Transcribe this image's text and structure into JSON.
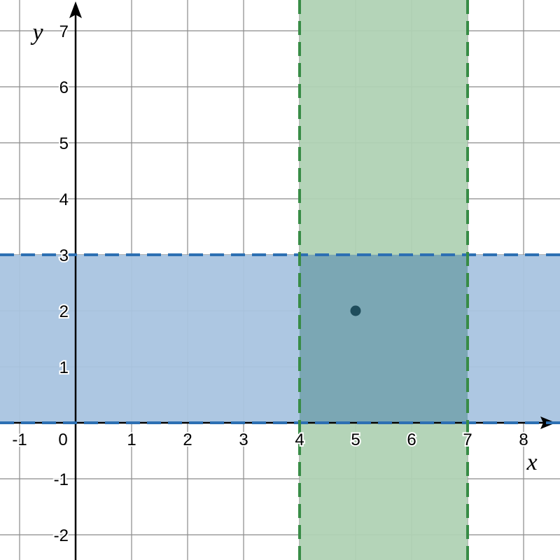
{
  "chart_data": {
    "type": "scatter",
    "xlabel": "x",
    "ylabel": "y",
    "xlim": [
      -1.35,
      8.65
    ],
    "ylim": [
      -2.45,
      7.55
    ],
    "grid": true,
    "x_ticks": [
      -1,
      0,
      1,
      2,
      3,
      4,
      5,
      6,
      7,
      8
    ],
    "y_ticks": [
      -2,
      -1,
      1,
      2,
      3,
      4,
      5,
      6,
      7
    ],
    "regions": [
      {
        "orientation": "horizontal",
        "from": 0,
        "to": 3,
        "fill": "#a9c4e0",
        "border_color": "#2d70b3",
        "border_style": "dashed"
      },
      {
        "orientation": "vertical",
        "from": 4,
        "to": 7,
        "fill": "#b0d2b4",
        "border_color": "#388c46",
        "border_style": "dashed"
      }
    ],
    "overlap_fill": "#7ba7b4",
    "points": [
      {
        "x": 5,
        "y": 2,
        "color": "#1f4d5c"
      }
    ]
  }
}
